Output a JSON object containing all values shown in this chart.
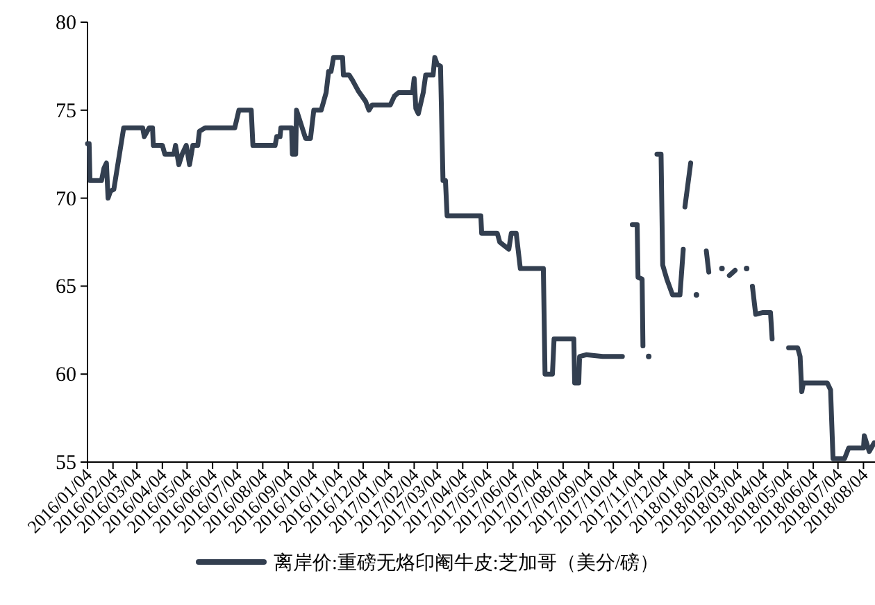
{
  "chart_data": {
    "type": "line",
    "legend": "bottom",
    "xlim": [
      "2016-01-04",
      "2018-08-18"
    ],
    "ylim": [
      55,
      80
    ],
    "yticks": [
      55,
      60,
      65,
      70,
      75,
      80
    ],
    "xticks": [
      {
        "value": "2016-01-04",
        "label": "2016/01/04"
      },
      {
        "value": "2016-02-04",
        "label": "2016/02/04"
      },
      {
        "value": "2016-03-04",
        "label": "2016/03/04"
      },
      {
        "value": "2016-04-04",
        "label": "2016/04/04"
      },
      {
        "value": "2016-05-04",
        "label": "2016/05/04"
      },
      {
        "value": "2016-06-04",
        "label": "2016/06/04"
      },
      {
        "value": "2016-07-04",
        "label": "2016/07/04"
      },
      {
        "value": "2016-08-04",
        "label": "2016/08/04"
      },
      {
        "value": "2016-09-04",
        "label": "2016/09/04"
      },
      {
        "value": "2016-10-04",
        "label": "2016/10/04"
      },
      {
        "value": "2016-11-04",
        "label": "2016/11/04"
      },
      {
        "value": "2016-12-04",
        "label": "2016/12/04"
      },
      {
        "value": "2017-01-04",
        "label": "2017/01/04"
      },
      {
        "value": "2017-02-04",
        "label": "2017/02/04"
      },
      {
        "value": "2017-03-04",
        "label": "2017/03/04"
      },
      {
        "value": "2017-04-04",
        "label": "2017/04/04"
      },
      {
        "value": "2017-05-04",
        "label": "2017/05/04"
      },
      {
        "value": "2017-06-04",
        "label": "2017/06/04"
      },
      {
        "value": "2017-07-04",
        "label": "2017/07/04"
      },
      {
        "value": "2017-08-04",
        "label": "2017/08/04"
      },
      {
        "value": "2017-09-04",
        "label": "2017/09/04"
      },
      {
        "value": "2017-10-04",
        "label": "2017/10/04"
      },
      {
        "value": "2017-11-04",
        "label": "2017/11/04"
      },
      {
        "value": "2017-12-04",
        "label": "2017/12/04"
      },
      {
        "value": "2018-01-04",
        "label": "2018/01/04"
      },
      {
        "value": "2018-02-04",
        "label": "2018/02/04"
      },
      {
        "value": "2018-03-04",
        "label": "2018/03/04"
      },
      {
        "value": "2018-04-04",
        "label": "2018/04/04"
      },
      {
        "value": "2018-05-04",
        "label": "2018/05/04"
      },
      {
        "value": "2018-06-04",
        "label": "2018/06/04"
      },
      {
        "value": "2018-07-04",
        "label": "2018/07/04"
      },
      {
        "value": "2018-08-04",
        "label": "2018/08/04"
      }
    ],
    "series": [
      {
        "name": "离岸价:重磅无烙印阉牛皮:芝加哥（美分/磅）",
        "color": "#333f50",
        "x": [
          "2016-01-04",
          "2016-01-06",
          "2016-01-07",
          "2016-01-21",
          "2016-01-24",
          "2016-01-27",
          "2016-01-29",
          "2016-02-01",
          "2016-02-05",
          "2016-02-17",
          "2016-03-11",
          "2016-03-13",
          "2016-03-19",
          "2016-03-23",
          "2016-03-24",
          "2016-04-04",
          "2016-04-07",
          "2016-04-18",
          "2016-04-20",
          "2016-04-24",
          "2016-04-28",
          "2016-05-03",
          "2016-05-07",
          "2016-05-11",
          "2016-05-17",
          "2016-05-19",
          "2016-05-26",
          "2016-07-01",
          "2016-07-06",
          "2016-07-21",
          "2016-07-23",
          "2016-08-19",
          "2016-08-21",
          "2016-08-25",
          "2016-08-26",
          "2016-09-08",
          "2016-09-09",
          "2016-09-13",
          "2016-09-14",
          "2016-09-25",
          "2016-10-01",
          "2016-10-05",
          "2016-10-14",
          "2016-10-20",
          "2016-10-23",
          "2016-10-26",
          "2016-10-29",
          "2016-11-09",
          "2016-11-10",
          "2016-11-17",
          "2016-11-21",
          "2016-11-28",
          "2016-12-07",
          "2016-12-11",
          "2016-12-15",
          "2017-01-06",
          "2017-01-11",
          "2017-01-16",
          "2017-02-02",
          "2017-02-04",
          "2017-02-06",
          "2017-02-09",
          "2017-02-15",
          "2017-02-18",
          "2017-02-27",
          "2017-03-01",
          "2017-03-04",
          "2017-03-08",
          "2017-03-11",
          "2017-03-14",
          "2017-03-16",
          "2017-04-26",
          "2017-04-27",
          "2017-05-16",
          "2017-05-19",
          "2017-05-30",
          "2017-06-02",
          "2017-06-08",
          "2017-06-13",
          "2017-07-11",
          "2017-07-13",
          "2017-07-22",
          "2017-07-24",
          "2017-08-17",
          "2017-08-18",
          "2017-08-23",
          "2017-08-24",
          "2017-09-01",
          "2017-09-21",
          "2017-10-15"
        ],
        "values": [
          73.1,
          73.1,
          71.0,
          71.0,
          71.7,
          72.0,
          70.0,
          70.4,
          70.5,
          74.0,
          74.0,
          73.5,
          74.0,
          74.0,
          73.0,
          73.0,
          72.5,
          72.5,
          73.0,
          71.9,
          72.5,
          73.0,
          71.9,
          73.0,
          73.0,
          73.8,
          74.0,
          74.0,
          75.0,
          75.0,
          73.0,
          73.0,
          73.5,
          73.5,
          74.0,
          74.0,
          72.5,
          72.5,
          75.0,
          73.4,
          73.4,
          75.0,
          75.0,
          76.0,
          77.2,
          77.2,
          78.0,
          78.0,
          77.0,
          77.0,
          76.7,
          76.1,
          75.5,
          75.0,
          75.3,
          75.3,
          75.8,
          76.0,
          76.0,
          76.8,
          75.1,
          74.8,
          76.0,
          77.0,
          77.0,
          78.0,
          77.6,
          77.5,
          71.0,
          71.0,
          69.0,
          69.0,
          68.0,
          68.0,
          67.5,
          67.1,
          68.0,
          68.0,
          66.0,
          66.0,
          60.0,
          60.0,
          62.0,
          62.0,
          59.5,
          59.5,
          61.0,
          61.1,
          61.0,
          61.0
        ]
      },
      {
        "color": "#333f50",
        "x": [
          "2017-10-27",
          "2017-11-02",
          "2017-11-03",
          "2017-11-08",
          "2017-11-09"
        ],
        "values": [
          68.5,
          68.5,
          65.5,
          65.4,
          61.6
        ]
      },
      {
        "color": "#333f50",
        "x": [
          "2017-11-16"
        ],
        "values": [
          61.0
        ],
        "marker": "circle"
      },
      {
        "color": "#333f50",
        "x": [
          "2017-11-26",
          "2017-12-01",
          "2017-12-03",
          "2017-12-08",
          "2017-12-15",
          "2017-12-24",
          "2017-12-28"
        ],
        "values": [
          72.5,
          72.5,
          66.2,
          65.4,
          64.5,
          64.5,
          67.1
        ]
      },
      {
        "color": "#333f50",
        "x": [
          "2017-12-30",
          "2018-01-06"
        ],
        "values": [
          69.5,
          72.0
        ]
      },
      {
        "color": "#333f50",
        "x": [
          "2018-01-13"
        ],
        "values": [
          64.5
        ],
        "marker": "circle"
      },
      {
        "color": "#333f50",
        "x": [
          "2018-01-25",
          "2018-01-28"
        ],
        "values": [
          67.0,
          65.8
        ]
      },
      {
        "color": "#333f50",
        "x": [
          "2018-02-13"
        ],
        "values": [
          66.0
        ],
        "marker": "circle"
      },
      {
        "color": "#333f50",
        "x": [
          "2018-02-22",
          "2018-03-01"
        ],
        "values": [
          65.6,
          65.9
        ]
      },
      {
        "color": "#333f50",
        "x": [
          "2018-03-15"
        ],
        "values": [
          66.0
        ],
        "marker": "circle"
      },
      {
        "color": "#333f50",
        "x": [
          "2018-03-22",
          "2018-03-26",
          "2018-04-04",
          "2018-04-13",
          "2018-04-15"
        ],
        "values": [
          65.0,
          63.4,
          63.5,
          63.5,
          62.0
        ]
      },
      {
        "color": "#333f50",
        "x": [
          "2018-05-05",
          "2018-05-16",
          "2018-05-19",
          "2018-05-21",
          "2018-05-23",
          "2018-06-21",
          "2018-06-25",
          "2018-06-28",
          "2018-07-12",
          "2018-07-17",
          "2018-08-04",
          "2018-08-05",
          "2018-08-11",
          "2018-08-17"
        ],
        "values": [
          61.5,
          61.5,
          61.0,
          59.0,
          59.5,
          59.5,
          59.1,
          55.2,
          55.2,
          55.8,
          55.8,
          56.5,
          55.6,
          56.1
        ]
      }
    ]
  }
}
